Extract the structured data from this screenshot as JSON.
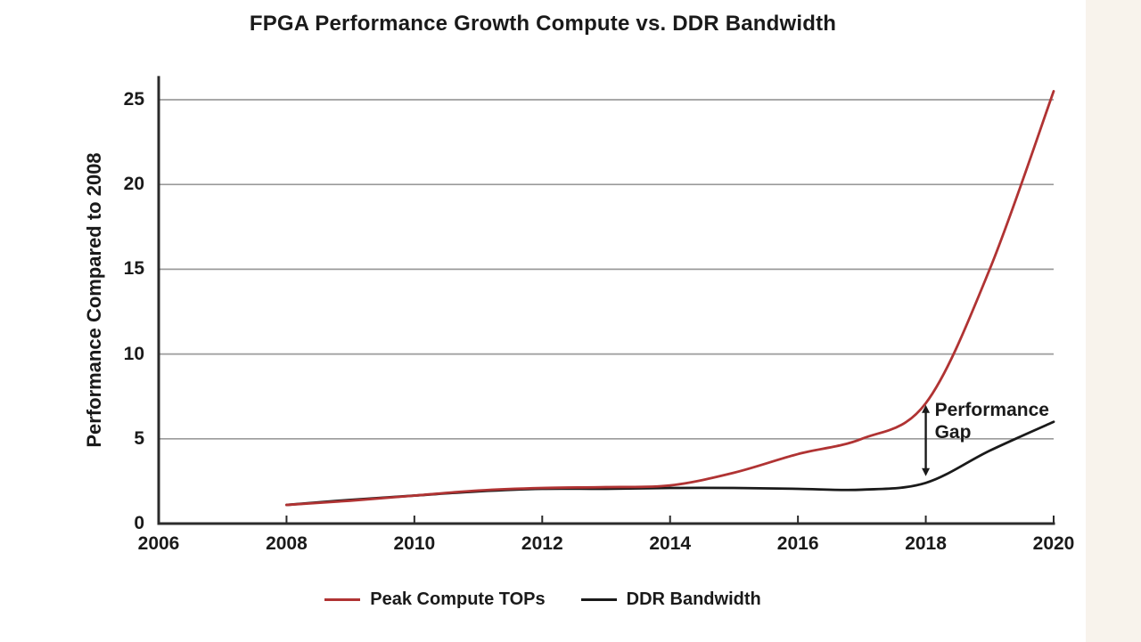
{
  "chart_data": {
    "type": "line",
    "title": "FPGA Performance Growth Compute vs. DDR Bandwidth",
    "xlabel": "",
    "ylabel": "Performance Compared to 2008",
    "xlim": [
      2006,
      2020
    ],
    "ylim": [
      0,
      26.4
    ],
    "x_ticks": [
      2006,
      2008,
      2010,
      2012,
      2014,
      2016,
      2018,
      2020
    ],
    "y_ticks": [
      0,
      5,
      10,
      15,
      20,
      25
    ],
    "grid": "horizontal-gray-lines",
    "legend_position": "bottom-center",
    "x": [
      2008,
      2009,
      2010,
      2011,
      2012,
      2013,
      2014,
      2015,
      2016,
      2017,
      2018,
      2019,
      2020
    ],
    "series": [
      {
        "name": "Peak Compute TOPs",
        "color": "#B03333",
        "values": [
          1.1,
          1.35,
          1.65,
          1.95,
          2.1,
          2.15,
          2.25,
          3.0,
          4.1,
          5.0,
          7.1,
          15.0,
          25.5
        ]
      },
      {
        "name": "DDR Bandwidth",
        "color": "#1A1A1A",
        "values": [
          1.1,
          1.4,
          1.65,
          1.9,
          2.05,
          2.05,
          2.1,
          2.1,
          2.05,
          2.0,
          2.4,
          4.3,
          6.0
        ]
      }
    ],
    "annotation": {
      "text": "Performance Gap",
      "line1": "Performance",
      "line2": "Gap",
      "arrow_x": 2018,
      "arrow_y_from": 2.8,
      "arrow_y_to": 7.0
    }
  },
  "colors": {
    "grid": "#9B9B9B",
    "axis": "#2B2B2B",
    "text": "#1A1A1A",
    "background": "#FFFFFF",
    "right_strip": "#F8F3EC"
  }
}
